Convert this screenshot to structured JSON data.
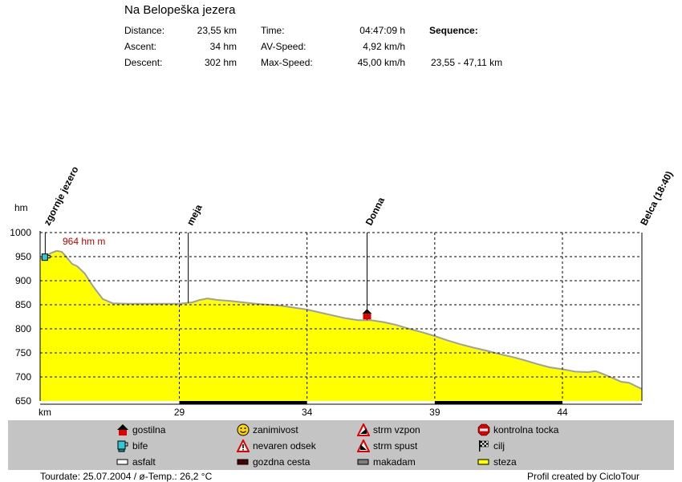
{
  "header": {
    "title": "Na Belopeška jezera",
    "col1": [
      {
        "label": "Distance:",
        "value": "23,55 km"
      },
      {
        "label": "Ascent:",
        "value": "34 hm"
      },
      {
        "label": "Descent:",
        "value": "302 hm"
      }
    ],
    "col2": [
      {
        "label": "Time:",
        "value": "04:47:09 h"
      },
      {
        "label": "AV-Speed:",
        "value": "4,92 km/h"
      },
      {
        "label": "Max-Speed:",
        "value": "45,00 km/h"
      }
    ],
    "sequence_label": "Sequence:",
    "sequence_value": "23,55 - 47,11 km"
  },
  "chart_data": {
    "type": "area",
    "ylabel": "hm",
    "xlabel": "km",
    "xlim": [
      23.55,
      47.11
    ],
    "ylim": [
      650,
      1000
    ],
    "yticks": [
      650,
      700,
      750,
      800,
      850,
      900,
      950,
      1000
    ],
    "xticks": [
      29,
      34,
      39,
      44
    ],
    "max_label": "964 hm m",
    "max_point": {
      "x": 24.3,
      "y": 964
    },
    "fill_color": "#ffff00",
    "line_color": "#a0a0a0",
    "series": [
      {
        "x": [
          23.55,
          23.8,
          24.0,
          24.2,
          24.4,
          24.6,
          24.8,
          25.0,
          25.3,
          25.6,
          26.0,
          26.4,
          27.0,
          28.0,
          29.0,
          29.5,
          29.8,
          30.1,
          30.5,
          31.0,
          32.0,
          33.0,
          34.0,
          34.5,
          35.0,
          35.5,
          36.0,
          36.5,
          37.0,
          37.5,
          38.0,
          38.5,
          39.0,
          39.5,
          40.0,
          40.5,
          41.0,
          41.5,
          42.0,
          42.5,
          43.0,
          43.5,
          44.0,
          44.5,
          45.0,
          45.3,
          45.6,
          46.0,
          46.3,
          46.6,
          47.11
        ],
        "y": [
          945,
          952,
          958,
          962,
          960,
          948,
          935,
          930,
          915,
          890,
          862,
          853,
          852,
          852,
          852,
          855,
          860,
          863,
          860,
          858,
          852,
          848,
          840,
          834,
          828,
          822,
          818,
          818,
          814,
          808,
          800,
          793,
          785,
          776,
          768,
          761,
          755,
          748,
          742,
          735,
          727,
          720,
          716,
          711,
          710,
          712,
          706,
          697,
          690,
          688,
          675
        ]
      }
    ],
    "waypoints": [
      {
        "label": "zgornje jezero",
        "km": 23.75
      },
      {
        "label": "meja",
        "km": 29.35
      },
      {
        "label": "Donna",
        "km": 36.35
      },
      {
        "label": "Belca (18:40)",
        "km": 47.11
      }
    ],
    "bottom_bars": [
      {
        "from": 29.0,
        "to": 34.0,
        "kind": "gozdna cesta"
      },
      {
        "from": 39.0,
        "to": 44.0,
        "kind": "gozdna cesta"
      }
    ]
  },
  "legend": {
    "items": [
      {
        "label": "gostilna",
        "icon": "house-icon"
      },
      {
        "label": "bife",
        "icon": "cup-icon"
      },
      {
        "label": "asfalt",
        "icon": "asphalt-swatch"
      },
      {
        "label": "zanimivost",
        "icon": "smiley-icon"
      },
      {
        "label": "nevaren odsek",
        "icon": "warning-icon"
      },
      {
        "label": "gozdna cesta",
        "icon": "forest-road-swatch"
      },
      {
        "label": "strm vzpon",
        "icon": "steep-up-icon"
      },
      {
        "label": "strm spust",
        "icon": "steep-down-icon"
      },
      {
        "label": "makadam",
        "icon": "gravel-swatch"
      },
      {
        "label": "kontrolna tocka",
        "icon": "stop-icon"
      },
      {
        "label": "cilj",
        "icon": "checkered-flag-icon"
      },
      {
        "label": "steza",
        "icon": "trail-swatch"
      }
    ]
  },
  "footer": {
    "tourdate": "Tourdate: 25.07.2004  /  ø-Temp.: 26,2 °C",
    "credit": "Profil created by CicloTour"
  }
}
